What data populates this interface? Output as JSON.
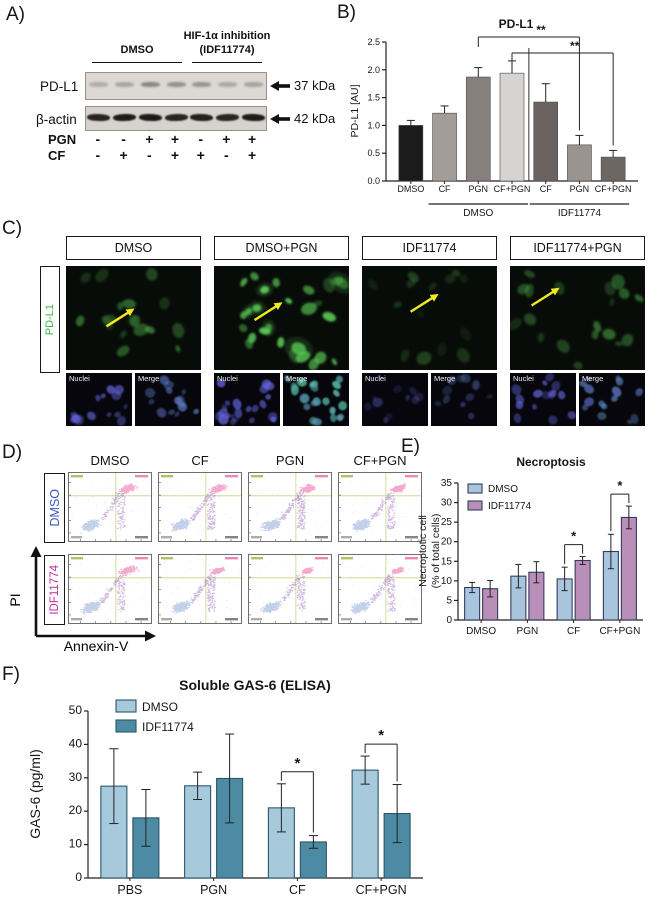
{
  "colors": {
    "pdl1_green": "#3cb54a",
    "nuclei_blue": "#6464dc",
    "flow_blue": "#7b97cf",
    "flow_pink": "#e8559c",
    "flow_purple": "#8a4fae",
    "flow_crosshair": "#c9d288",
    "arrow_yellow": "#f2ea1f",
    "dmso_row_label": "#3a57c4",
    "idf_row_label": "#bb2f9b"
  },
  "panel_a": {
    "label": "A)",
    "group1": {
      "line1": "DMSO"
    },
    "group2": {
      "line1": "HIF-1α inhibition",
      "line2": "(IDF11774)"
    },
    "blots": [
      {
        "label": "PD-L1",
        "marker": "37 kDa",
        "band_opacity": [
          0.28,
          0.33,
          0.52,
          0.46,
          0.44,
          0.3,
          0.34
        ]
      },
      {
        "label": "β-actin",
        "marker": "42 kDa",
        "band_opacity": [
          0.9,
          0.95,
          0.95,
          0.9,
          0.92,
          0.9,
          0.95
        ]
      }
    ],
    "treatment_rows": [
      {
        "label": "PGN",
        "signs": [
          "-",
          "-",
          "+",
          "+",
          "-",
          "+",
          "+"
        ]
      },
      {
        "label": "CF",
        "signs": [
          "-",
          "+",
          "-",
          "+",
          "+",
          "-",
          "+"
        ]
      }
    ]
  },
  "panel_b": {
    "label": "B)"
  },
  "panel_c": {
    "label": "C)",
    "row_label": "PD-L1",
    "sub_labels": [
      "Nuclei",
      "Merge"
    ],
    "columns": [
      {
        "title": "DMSO",
        "cells": 17,
        "brightness": 0.55,
        "nuclei_brightness": 0.75,
        "merge_green": 0.15,
        "arrow": [
          0.3,
          0.58,
          0.47,
          0.44
        ]
      },
      {
        "title": "DMSO+PGN",
        "cells": 27,
        "brightness": 1.0,
        "nuclei_brightness": 0.85,
        "merge_green": 0.75,
        "arrow": [
          0.3,
          0.52,
          0.47,
          0.38
        ]
      },
      {
        "title": "IDF11774",
        "cells": 14,
        "brightness": 0.3,
        "nuclei_brightness": 0.4,
        "merge_green": 0.1,
        "arrow": [
          0.36,
          0.44,
          0.53,
          0.3
        ]
      },
      {
        "title": "IDF11774+PGN",
        "cells": 19,
        "brightness": 0.5,
        "nuclei_brightness": 0.8,
        "merge_green": 0.25,
        "arrow": [
          0.16,
          0.38,
          0.33,
          0.24
        ]
      }
    ]
  },
  "panel_d": {
    "label": "D)",
    "col_titles": [
      "DMSO",
      "CF",
      "PGN",
      "CF+PGN"
    ],
    "rows": [
      {
        "title": "DMSO",
        "color": "#3a57c4"
      },
      {
        "title": "IDF11774",
        "color": "#bb2f9b"
      }
    ],
    "xlabel": "Annexin-V",
    "ylabel": "PI",
    "plots": [
      [
        {
          "pink_n": 150,
          "pink_s": 0.06,
          "mid_n": 90
        },
        {
          "pink_n": 160,
          "pink_s": 0.055,
          "mid_n": 120
        },
        {
          "pink_n": 170,
          "pink_s": 0.05,
          "mid_n": 140
        },
        {
          "pink_n": 220,
          "pink_s": 0.048,
          "mid_n": 110
        }
      ],
      [
        {
          "pink_n": 140,
          "pink_s": 0.058,
          "mid_n": 100
        },
        {
          "pink_n": 230,
          "pink_s": 0.042,
          "mid_n": 130
        },
        {
          "pink_n": 200,
          "pink_s": 0.038,
          "mid_n": 105
        },
        {
          "pink_n": 240,
          "pink_s": 0.038,
          "mid_n": 115
        }
      ]
    ]
  },
  "panel_e": {
    "label": "E)"
  },
  "panel_f": {
    "label": "F)"
  },
  "chart_data": [
    {
      "type": "bar",
      "title": "PD-L1",
      "ylabel": "PD-L1 [AU]",
      "ylim": [
        0,
        2.5
      ],
      "yticks": [
        0,
        0.5,
        1.0,
        1.5,
        2.0,
        2.5
      ],
      "ytick_labels": [
        "0.0",
        "0.5",
        "1.0",
        "1.5",
        "2.0",
        "2.5"
      ],
      "categories": [
        "DMSO",
        "CF",
        "PGN",
        "CF+PGN",
        "CF",
        "PGN",
        "CF+PGN"
      ],
      "values": [
        1.0,
        1.22,
        1.87,
        1.94,
        1.42,
        0.65,
        0.43
      ],
      "errors": [
        0.09,
        0.13,
        0.17,
        0.22,
        0.33,
        0.17,
        0.12
      ],
      "bar_colors": [
        "#1b1b1b",
        "#a39d99",
        "#877f7b",
        "#d7d3d0",
        "#6b6360",
        "#9a948f",
        "#6e6662"
      ],
      "group_labels": [
        {
          "label": "DMSO",
          "from": 1,
          "to": 3
        },
        {
          "label": "IDF11774",
          "from": 4,
          "to": 6
        }
      ],
      "divider_after": 3,
      "significance": [
        {
          "from": 2,
          "to": 5,
          "label": "**"
        },
        {
          "from": 3,
          "to": 6,
          "label": "**"
        }
      ],
      "legend_position": "none",
      "grid": false
    },
    {
      "type": "grouped_bar",
      "title": "Necroptosis",
      "ylabel_lines": [
        "Necroptotic cell",
        "(% of total cells)"
      ],
      "ylim": [
        0,
        35
      ],
      "yticks": [
        0,
        5,
        10,
        15,
        20,
        25,
        30,
        35
      ],
      "categories": [
        "DMSO",
        "PGN",
        "CF",
        "CF+PGN"
      ],
      "series": [
        {
          "name": "DMSO",
          "color": "#a9c5de",
          "values": [
            8.3,
            11.2,
            10.5,
            17.5
          ],
          "errors": [
            1.3,
            3.0,
            3.0,
            4.4
          ]
        },
        {
          "name": "IDF11774",
          "color": "#b98fb9",
          "values": [
            8.0,
            12.2,
            15.2,
            26.2
          ],
          "errors": [
            2.1,
            2.7,
            1.0,
            2.9
          ]
        }
      ],
      "significance": [
        {
          "cat": 2,
          "label": "*"
        },
        {
          "cat": 3,
          "label": "*"
        }
      ],
      "legend_position": "top-left",
      "grid": false
    },
    {
      "type": "grouped_bar",
      "title": "Soluble GAS-6 (ELISA)",
      "ylabel_lines": [
        "GAS-6 (pg/ml)"
      ],
      "ylim": [
        0,
        50
      ],
      "yticks": [
        0,
        10,
        20,
        30,
        40,
        50
      ],
      "categories": [
        "PBS",
        "PGN",
        "CF",
        "CF+PGN"
      ],
      "series": [
        {
          "name": "DMSO",
          "color": "#a7c9dc",
          "values": [
            27.5,
            27.6,
            21.0,
            32.3
          ],
          "errors": [
            11.2,
            4.1,
            7.2,
            4.2
          ]
        },
        {
          "name": "IDF11774",
          "color": "#4c8ba3",
          "values": [
            18.0,
            29.8,
            10.8,
            19.3
          ],
          "errors": [
            8.5,
            13.3,
            1.9,
            8.7
          ]
        }
      ],
      "significance": [
        {
          "cat": 2,
          "label": "*"
        },
        {
          "cat": 3,
          "label": "*"
        }
      ],
      "legend_position": "top-left",
      "grid": false
    }
  ]
}
